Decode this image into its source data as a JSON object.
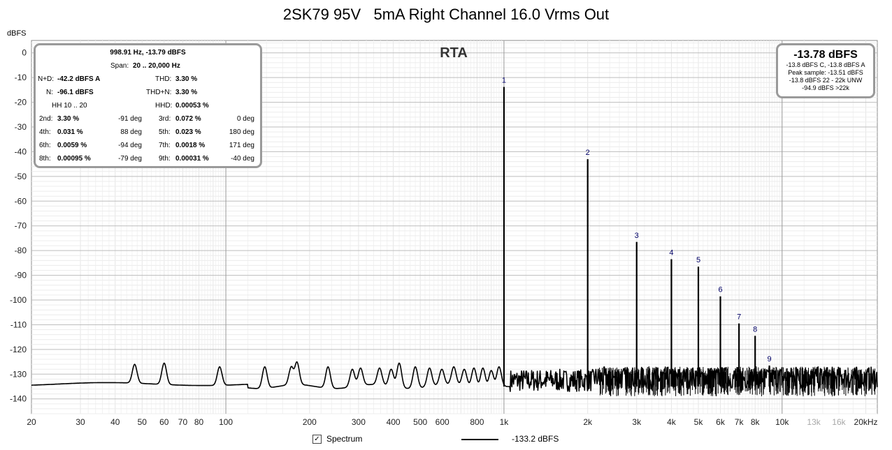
{
  "title": "2SK79 95V   5mA Right Channel 16.0 Vrms Out",
  "chart_data": {
    "type": "line",
    "title": "2SK79 95V   5mA Right Channel 16.0 Vrms Out",
    "subtitle": "RTA",
    "ylabel": "dBFS",
    "xlabel": "",
    "x_scale": "log",
    "xlim": [
      20,
      22000
    ],
    "ylim": [
      -146,
      5
    ],
    "grid": true,
    "x_ticks": [
      {
        "v": 20,
        "t": "20"
      },
      {
        "v": 30,
        "t": "30"
      },
      {
        "v": 40,
        "t": "40"
      },
      {
        "v": 50,
        "t": "50"
      },
      {
        "v": 60,
        "t": "60"
      },
      {
        "v": 70,
        "t": "70"
      },
      {
        "v": 80,
        "t": "80"
      },
      {
        "v": 100,
        "t": "100"
      },
      {
        "v": 200,
        "t": "200"
      },
      {
        "v": 300,
        "t": "300"
      },
      {
        "v": 400,
        "t": "400"
      },
      {
        "v": 500,
        "t": "500"
      },
      {
        "v": 600,
        "t": "600"
      },
      {
        "v": 800,
        "t": "800"
      },
      {
        "v": 1000,
        "t": "1k"
      },
      {
        "v": 2000,
        "t": "2k"
      },
      {
        "v": 3000,
        "t": "3k"
      },
      {
        "v": 4000,
        "t": "4k"
      },
      {
        "v": 5000,
        "t": "5k"
      },
      {
        "v": 6000,
        "t": "6k"
      },
      {
        "v": 7000,
        "t": "7k"
      },
      {
        "v": 8000,
        "t": "8k"
      },
      {
        "v": 10000,
        "t": "10k"
      },
      {
        "v": 13000,
        "t": "13k",
        "grey": true
      },
      {
        "v": 16000,
        "t": "16k",
        "grey": true
      },
      {
        "v": 20000,
        "t": "20kHz"
      }
    ],
    "y_ticks": [
      0,
      -10,
      -20,
      -30,
      -40,
      -50,
      -60,
      -70,
      -80,
      -90,
      -100,
      -110,
      -120,
      -130,
      -140
    ],
    "harmonic_peaks": [
      {
        "n": "1",
        "f": 1000,
        "db": -13.8
      },
      {
        "n": "2",
        "f": 2000,
        "db": -43.0
      },
      {
        "n": "3",
        "f": 3000,
        "db": -76.5
      },
      {
        "n": "4",
        "f": 4000,
        "db": -83.5
      },
      {
        "n": "5",
        "f": 5000,
        "db": -86.5
      },
      {
        "n": "6",
        "f": 6000,
        "db": -98.5
      },
      {
        "n": "7",
        "f": 7000,
        "db": -109.5
      },
      {
        "n": "8",
        "f": 8000,
        "db": -114.5
      },
      {
        "n": "9",
        "f": 9000,
        "db": -126.5
      }
    ],
    "noise_peaks": [
      {
        "f": 47,
        "db": -126
      },
      {
        "f": 60,
        "db": -125.5
      },
      {
        "f": 95,
        "db": -127
      },
      {
        "f": 138,
        "db": -127
      },
      {
        "f": 172,
        "db": -127
      },
      {
        "f": 180,
        "db": -125
      },
      {
        "f": 233,
        "db": -127
      },
      {
        "f": 285,
        "db": -128
      },
      {
        "f": 305,
        "db": -127.5
      },
      {
        "f": 357,
        "db": -127.5
      },
      {
        "f": 393,
        "db": -128
      },
      {
        "f": 420,
        "db": -125.5
      },
      {
        "f": 480,
        "db": -127
      },
      {
        "f": 540,
        "db": -127.5
      },
      {
        "f": 598,
        "db": -128
      },
      {
        "f": 660,
        "db": -127
      },
      {
        "f": 720,
        "db": -128
      },
      {
        "f": 780,
        "db": -127.5
      },
      {
        "f": 840,
        "db": -127.5
      },
      {
        "f": 900,
        "db": -128.5
      },
      {
        "f": 960,
        "db": -127
      }
    ],
    "noise_floor": -135,
    "series": [
      {
        "name": "Spectrum",
        "level": "-133.2 dBFS"
      }
    ]
  },
  "stats_box": {
    "header": "998.91 Hz, -13.79 dBFS",
    "span_label": "Span:",
    "span_value": "20 .. 20,000 Hz",
    "nd_label": "N+D:",
    "nd_value": "-42.2 dBFS A",
    "thd_label": "THD:",
    "thd_value": "3.30 %",
    "n_label": "N:",
    "n_value": "-96.1 dBFS",
    "thdn_label": "THD+N:",
    "thdn_value": "3.30 %",
    "hh_label": "HH 10 .. 20",
    "hhd_label": "HHD:",
    "hhd_value": "0.00053 %",
    "harmonics": [
      {
        "l1": "2nd:",
        "v1": "3.30 %",
        "p1": "-91 deg",
        "l2": "3rd:",
        "v2": "0.072 %",
        "p2": "0 deg"
      },
      {
        "l1": "4th:",
        "v1": "0.031 %",
        "p1": "88 deg",
        "l2": "5th:",
        "v2": "0.023 %",
        "p2": "180 deg"
      },
      {
        "l1": "6th:",
        "v1": "0.0059 %",
        "p1": "-94 deg",
        "l2": "7th:",
        "v2": "0.0018 %",
        "p2": "171 deg"
      },
      {
        "l1": "8th:",
        "v1": "0.00095 %",
        "p1": "-79 deg",
        "l2": "9th:",
        "v2": "0.00031 %",
        "p2": "-40 deg"
      }
    ]
  },
  "level_box": {
    "main": "-13.78 dBFS",
    "line1": "-13.8 dBFS C, -13.8 dBFS A",
    "line2": "Peak sample: -13.51 dBFS",
    "line3": "-13.8 dBFS 22 - 22k UNW",
    "line4": "-94.9 dBFS >22k"
  },
  "legend": {
    "checkbox_mark": "✓",
    "spectrum_label": "Spectrum",
    "line_value": "-133.2 dBFS"
  },
  "colors": {
    "trace": "#000000",
    "grid_major": "#bdbdbd",
    "grid_minor": "#e6e6e6",
    "box_border": "#9a9a9a",
    "marker_label": "#000066"
  }
}
